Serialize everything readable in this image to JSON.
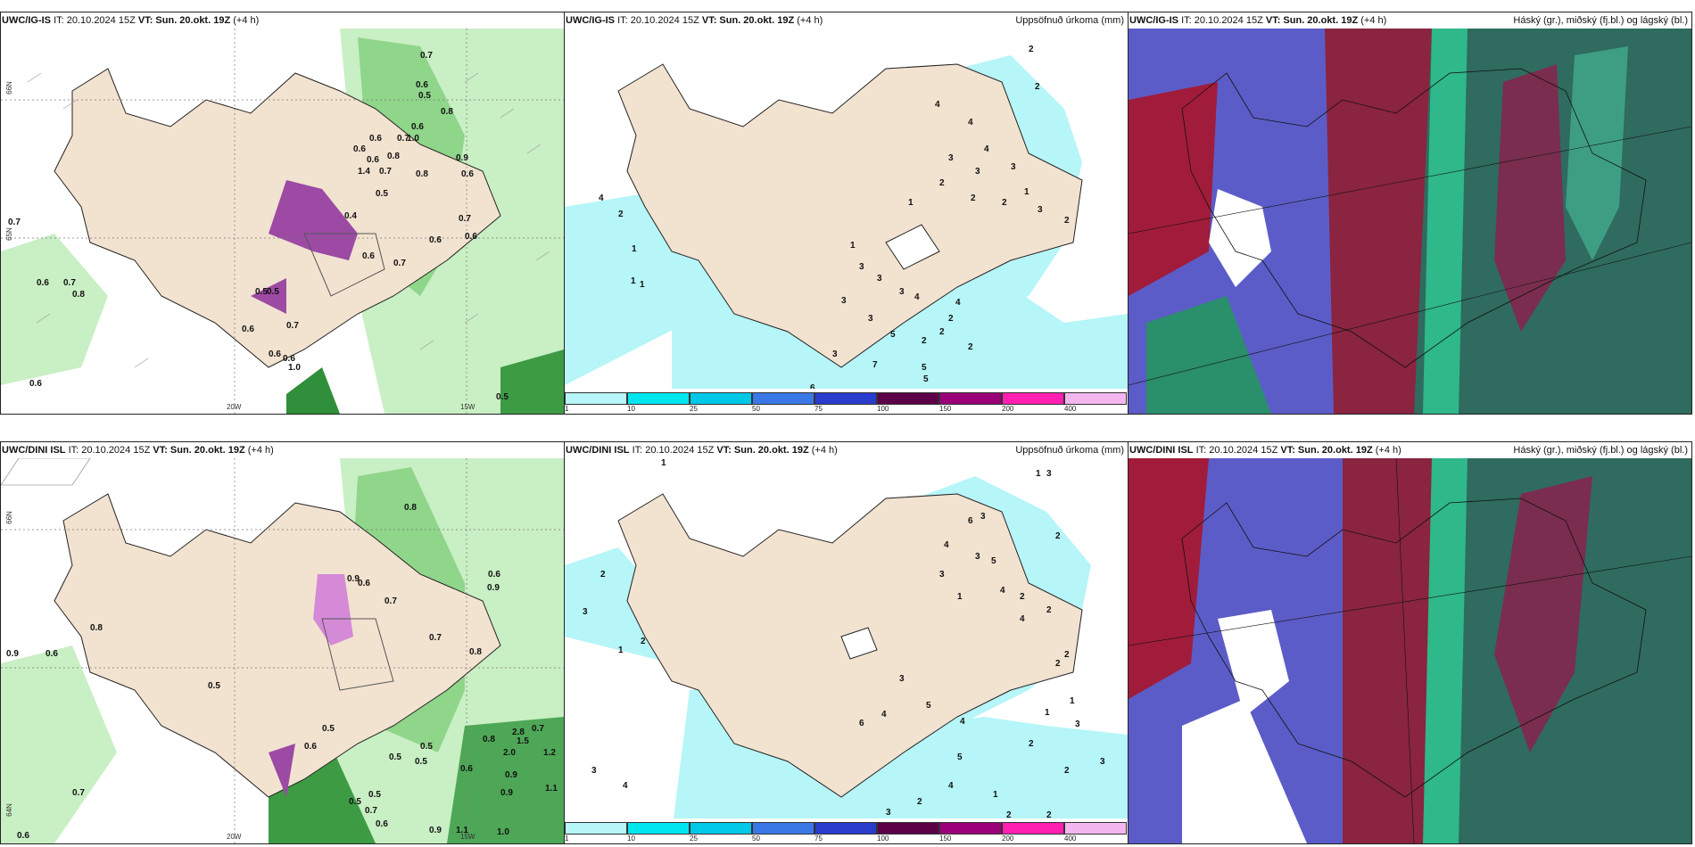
{
  "panels": [
    {
      "id": "wind-top",
      "header": {
        "model": "UWC/IG-IS",
        "init": "IT: 20.10.2024 15Z",
        "valid": "VT: Sun. 20.okt. 19Z",
        "lead": "(+4 h)",
        "right": ""
      }
    },
    {
      "id": "accum-top",
      "header": {
        "model": "UWC/IG-IS",
        "init": "IT: 20.10.2024 15Z",
        "valid": "VT: Sun. 20.okt. 19Z",
        "lead": "(+4 h)",
        "right": "Uppsöfnuð úrkoma (mm)"
      }
    },
    {
      "id": "cloud-top",
      "header": {
        "model": "UWC/IG-IS",
        "init": "IT: 20.10.2024 15Z",
        "valid": "VT: Sun. 20.okt. 19Z",
        "lead": "(+4 h)",
        "right": "Háský (gr.), miðský (fj.bl.) og lágský (bl.)"
      }
    },
    {
      "id": "wind-bottom",
      "header": {
        "model": "UWC/DINI ISL",
        "init": "IT: 20.10.2024 15Z",
        "valid": "VT: Sun. 20.okt. 19Z",
        "lead": "(+4 h)",
        "right": ""
      }
    },
    {
      "id": "accum-bottom",
      "header": {
        "model": "UWC/DINI ISL",
        "init": "IT: 20.10.2024 15Z",
        "valid": "VT: Sun. 20.okt. 19Z",
        "lead": "(+4 h)",
        "right": "Uppsöfnuð úrkoma (mm)"
      }
    },
    {
      "id": "cloud-bottom",
      "header": {
        "model": "UWC/DINI ISL",
        "init": "IT: 20.10.2024 15Z",
        "valid": "VT: Sun. 20.okt. 19Z",
        "lead": "(+4 h)",
        "right": "Háský (gr.), miðský (fj.bl.) og lágský (bl.)"
      }
    }
  ],
  "axes": {
    "lat66": "66N",
    "lat65": "65N",
    "lat64": "64N",
    "lon20": "20W",
    "lon15": "15W"
  },
  "colorbar": {
    "ticks": [
      "1",
      "10",
      "25",
      "50",
      "75",
      "100",
      "150",
      "200",
      "400"
    ],
    "colors": [
      "#b6f5f8",
      "#00e6ee",
      "#00c8e6",
      "#3a78e6",
      "#2a3ccc",
      "#5c0048",
      "#9a0078",
      "#ff1fb0",
      "#f3b6ee"
    ]
  },
  "wind_labels_top": [
    "0.7",
    "0.6",
    "0.5",
    "0.8",
    "0.6",
    "0.6",
    "1.0",
    "0.7",
    "0.6",
    "0.8",
    "0.9",
    "0.6",
    "0.8",
    "1.4",
    "0.6",
    "0.7",
    "0.5",
    "0.4",
    "0.7",
    "0.6",
    "0.7",
    "0.6",
    "0.7",
    "0.8",
    "0.6",
    "0.5",
    "0.5",
    "0.6",
    "0.7",
    "0.6",
    "0.6",
    "0.5",
    "0.6",
    "0.7",
    "1.0",
    "0.6"
  ],
  "accum_labels_top": [
    "2",
    "2",
    "4",
    "2",
    "1",
    "1",
    "1",
    "1",
    "4",
    "4",
    "4",
    "3",
    "3",
    "3",
    "2",
    "1",
    "2",
    "2",
    "3",
    "2",
    "1",
    "3",
    "3",
    "3",
    "3",
    "2",
    "3",
    "2",
    "5",
    "4",
    "2",
    "2",
    "4",
    "3",
    "7",
    "5",
    "5",
    "6",
    "2"
  ],
  "wind_labels_bottom": [
    "0.8",
    "0.6",
    "0.9",
    "0.6",
    "0.8",
    "0.7",
    "0.5",
    "0.9",
    "0.6",
    "0.7",
    "0.9",
    "0.8",
    "0.5",
    "0.6",
    "0.5",
    "0.7",
    "0.5",
    "0.6",
    "0.6",
    "0.9",
    "1.1",
    "0.5",
    "0.7",
    "0.5",
    "0.6",
    "0.9",
    "1.2",
    "0.7",
    "0.5",
    "1.0",
    "0.9",
    "1.1",
    "0.8",
    "2.8",
    "2.0",
    "1.5"
  ],
  "accum_labels_bottom": [
    "1",
    "1",
    "3",
    "2",
    "6",
    "3",
    "4",
    "3",
    "5",
    "3",
    "2",
    "4",
    "1",
    "2",
    "2",
    "3",
    "2",
    "4",
    "2",
    "2",
    "1",
    "5",
    "6",
    "4",
    "3",
    "1",
    "1",
    "3",
    "4",
    "2",
    "3",
    "2",
    "3",
    "5",
    "4",
    "2",
    "3",
    "4",
    "1",
    "2",
    "2"
  ]
}
